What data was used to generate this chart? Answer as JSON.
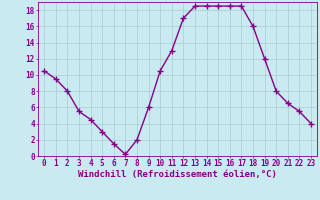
{
  "x": [
    0,
    1,
    2,
    3,
    4,
    5,
    6,
    7,
    8,
    9,
    10,
    11,
    12,
    13,
    14,
    15,
    16,
    17,
    18,
    19,
    20,
    21,
    22,
    23
  ],
  "y": [
    10.5,
    9.5,
    8.0,
    5.5,
    4.5,
    3.0,
    1.5,
    0.2,
    2.0,
    6.0,
    10.5,
    13.0,
    17.0,
    18.5,
    18.5,
    18.5,
    18.5,
    18.5,
    16.0,
    12.0,
    8.0,
    6.5,
    5.5,
    4.0
  ],
  "line_color": "#880088",
  "marker": "+",
  "marker_size": 4,
  "linewidth": 1.0,
  "bg_color": "#c8eaf0",
  "grid_color": "#aacccc",
  "xlabel": "Windchill (Refroidissement éolien,°C)",
  "xlabel_color": "#880088",
  "tick_color": "#880088",
  "xlim_min": -0.5,
  "xlim_max": 23.5,
  "ylim_min": 0,
  "ylim_max": 19,
  "xticks": [
    0,
    1,
    2,
    3,
    4,
    5,
    6,
    7,
    8,
    9,
    10,
    11,
    12,
    13,
    14,
    15,
    16,
    17,
    18,
    19,
    20,
    21,
    22,
    23
  ],
  "yticks": [
    0,
    2,
    4,
    6,
    8,
    10,
    12,
    14,
    16,
    18
  ],
  "xlabel_fontsize": 6.5,
  "tick_fontsize": 5.5,
  "font_family": "monospace"
}
